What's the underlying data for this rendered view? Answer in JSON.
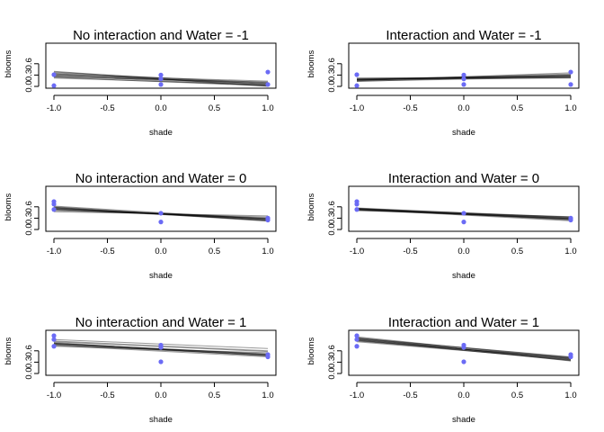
{
  "chart_data": [
    {
      "type": "scatter",
      "title": "No interaction and Water = -1",
      "xlabel": "shade",
      "ylabel": "blooms",
      "xlim": [
        -1,
        1
      ],
      "ylim": [
        0,
        1
      ],
      "xticks": [
        "-1.0",
        "-0.5",
        "0.0",
        "0.5",
        "1.0"
      ],
      "yticks": [
        "0.0",
        "0.3",
        "0.6"
      ],
      "point_color": "#6b6bf5",
      "points": [
        [
          -1,
          0.02
        ],
        [
          -1,
          0.31
        ],
        [
          0,
          0.05
        ],
        [
          0,
          0.2
        ],
        [
          0,
          0.3
        ],
        [
          1,
          0.38
        ],
        [
          1,
          0.05
        ]
      ],
      "lines": [
        [
          0.28,
          0.02
        ],
        [
          0.4,
          0.0
        ],
        [
          0.34,
          0.05
        ],
        [
          0.22,
          0.04
        ],
        [
          0.3,
          0.09
        ],
        [
          0.25,
          0.12
        ],
        [
          0.33,
          0.03
        ],
        [
          0.38,
          0.06
        ],
        [
          0.27,
          0.08
        ],
        [
          0.31,
          0.14
        ],
        [
          0.24,
          0.01
        ],
        [
          0.36,
          0.1
        ]
      ]
    },
    {
      "type": "scatter",
      "title": "Interaction and Water = -1",
      "xlabel": "shade",
      "ylabel": "blooms",
      "xlim": [
        -1,
        1
      ],
      "ylim": [
        0,
        1
      ],
      "xticks": [
        "-1.0",
        "-0.5",
        "0.0",
        "0.5",
        "1.0"
      ],
      "yticks": [
        "0.0",
        "0.3",
        "0.6"
      ],
      "point_color": "#6b6bf5",
      "points": [
        [
          -1,
          0.02
        ],
        [
          -1,
          0.31
        ],
        [
          0,
          0.05
        ],
        [
          0,
          0.2
        ],
        [
          0,
          0.3
        ],
        [
          1,
          0.38
        ],
        [
          1,
          0.05
        ]
      ],
      "lines": [
        [
          0.17,
          0.27
        ],
        [
          0.19,
          0.26
        ],
        [
          0.16,
          0.3
        ],
        [
          0.22,
          0.25
        ],
        [
          0.18,
          0.33
        ],
        [
          0.14,
          0.24
        ],
        [
          0.2,
          0.28
        ],
        [
          0.15,
          0.36
        ],
        [
          0.21,
          0.22
        ],
        [
          0.17,
          0.31
        ],
        [
          0.18,
          0.23
        ],
        [
          0.13,
          0.29
        ]
      ]
    },
    {
      "type": "scatter",
      "title": "No interaction and Water = 0",
      "xlabel": "shade",
      "ylabel": "blooms",
      "xlim": [
        -1,
        1
      ],
      "ylim": [
        0,
        1
      ],
      "xticks": [
        "-1.0",
        "-0.5",
        "0.0",
        "0.5",
        "1.0"
      ],
      "yticks": [
        "0.0",
        "0.3",
        "0.6"
      ],
      "point_color": "#6b6bf5",
      "points": [
        [
          -1,
          0.74
        ],
        [
          -1,
          0.67
        ],
        [
          -1,
          0.53
        ],
        [
          0,
          0.43
        ],
        [
          0,
          0.2
        ],
        [
          1,
          0.3
        ],
        [
          1,
          0.25
        ]
      ],
      "lines": [
        [
          0.57,
          0.26
        ],
        [
          0.55,
          0.28
        ],
        [
          0.6,
          0.24
        ],
        [
          0.52,
          0.3
        ],
        [
          0.58,
          0.22
        ],
        [
          0.5,
          0.33
        ],
        [
          0.62,
          0.27
        ],
        [
          0.54,
          0.25
        ],
        [
          0.56,
          0.3
        ],
        [
          0.47,
          0.36
        ],
        [
          0.59,
          0.23
        ],
        [
          0.53,
          0.29
        ]
      ]
    },
    {
      "type": "scatter",
      "title": "Interaction and Water = 0",
      "xlabel": "shade",
      "ylabel": "blooms",
      "xlim": [
        -1,
        1
      ],
      "ylim": [
        0,
        1
      ],
      "xticks": [
        "-1.0",
        "-0.5",
        "0.0",
        "0.5",
        "1.0"
      ],
      "yticks": [
        "0.0",
        "0.3",
        "0.6"
      ],
      "point_color": "#6b6bf5",
      "points": [
        [
          -1,
          0.74
        ],
        [
          -1,
          0.67
        ],
        [
          -1,
          0.53
        ],
        [
          0,
          0.43
        ],
        [
          0,
          0.2
        ],
        [
          1,
          0.3
        ],
        [
          1,
          0.25
        ]
      ],
      "lines": [
        [
          0.54,
          0.29
        ],
        [
          0.56,
          0.27
        ],
        [
          0.52,
          0.31
        ],
        [
          0.55,
          0.25
        ],
        [
          0.5,
          0.34
        ],
        [
          0.57,
          0.3
        ],
        [
          0.53,
          0.23
        ],
        [
          0.55,
          0.32
        ],
        [
          0.51,
          0.28
        ],
        [
          0.54,
          0.26
        ],
        [
          0.56,
          0.33
        ],
        [
          0.52,
          0.29
        ]
      ]
    },
    {
      "type": "scatter",
      "title": "No interaction and Water = 1",
      "xlabel": "shade",
      "ylabel": "blooms",
      "xlim": [
        -1,
        1
      ],
      "ylim": [
        0,
        1
      ],
      "xticks": [
        "-1.0",
        "-0.5",
        "0.0",
        "0.5",
        "1.0"
      ],
      "yticks": [
        "0.0",
        "0.3",
        "0.6"
      ],
      "point_color": "#6b6bf5",
      "points": [
        [
          -1,
          1.0
        ],
        [
          -1,
          0.9
        ],
        [
          -1,
          0.72
        ],
        [
          0,
          0.75
        ],
        [
          0,
          0.69
        ],
        [
          0,
          0.31
        ],
        [
          1,
          0.44
        ],
        [
          1,
          0.5
        ]
      ],
      "lines": [
        [
          0.78,
          0.49
        ],
        [
          0.8,
          0.5
        ],
        [
          0.76,
          0.47
        ],
        [
          0.84,
          0.58
        ],
        [
          0.74,
          0.44
        ],
        [
          0.9,
          0.66
        ],
        [
          0.79,
          0.52
        ],
        [
          0.82,
          0.46
        ],
        [
          0.72,
          0.55
        ],
        [
          0.86,
          0.6
        ],
        [
          0.77,
          0.48
        ],
        [
          0.8,
          0.51
        ]
      ]
    },
    {
      "type": "scatter",
      "title": "Interaction and Water = 1",
      "xlabel": "shade",
      "ylabel": "blooms",
      "xlim": [
        -1,
        1
      ],
      "ylim": [
        0,
        1
      ],
      "xticks": [
        "-1.0",
        "-0.5",
        "0.0",
        "0.5",
        "1.0"
      ],
      "yticks": [
        "0.0",
        "0.3",
        "0.6"
      ],
      "point_color": "#6b6bf5",
      "points": [
        [
          -1,
          1.0
        ],
        [
          -1,
          0.9
        ],
        [
          -1,
          0.72
        ],
        [
          0,
          0.75
        ],
        [
          0,
          0.69
        ],
        [
          0,
          0.31
        ],
        [
          1,
          0.44
        ],
        [
          1,
          0.5
        ]
      ],
      "lines": [
        [
          0.9,
          0.38
        ],
        [
          0.92,
          0.36
        ],
        [
          0.88,
          0.4
        ],
        [
          0.95,
          0.33
        ],
        [
          0.86,
          0.42
        ],
        [
          0.93,
          0.44
        ],
        [
          0.89,
          0.34
        ],
        [
          0.97,
          0.39
        ],
        [
          0.84,
          0.37
        ],
        [
          0.91,
          0.41
        ],
        [
          0.87,
          0.35
        ],
        [
          0.94,
          0.43
        ]
      ]
    }
  ]
}
